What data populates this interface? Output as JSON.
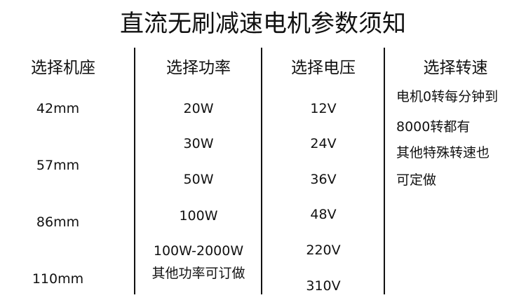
{
  "title": "直流无刷减速电机参数须知",
  "columns": [
    {
      "header": "选择机座",
      "items": [
        "42mm",
        "57mm",
        "86mm",
        "110mm"
      ]
    },
    {
      "header": "选择功率",
      "items": [
        "20W",
        "30W",
        "50W",
        "100W",
        "100W-2000W",
        "其他功率可订做"
      ]
    },
    {
      "header": "选择电压",
      "items": [
        "12V",
        "24V",
        "36V",
        "48V",
        "220V",
        "310V"
      ]
    },
    {
      "header": "选择转速",
      "items": [
        "电机0转每分钟到",
        "8000转都有",
        "其他特殊转速也",
        "可定做"
      ]
    }
  ]
}
